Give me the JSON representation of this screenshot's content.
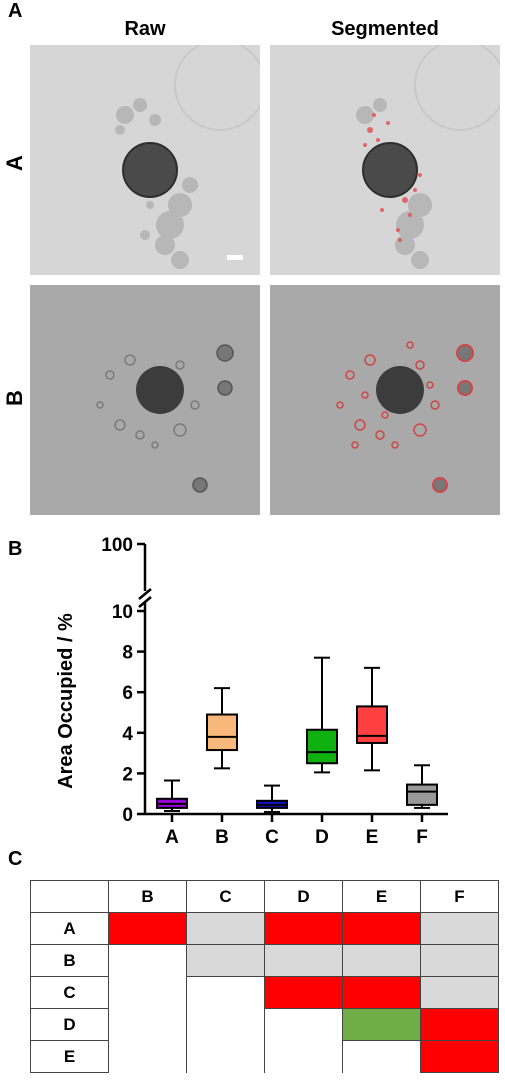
{
  "panelA": {
    "letter": "A",
    "col_headers": [
      "Raw",
      "Segmented"
    ],
    "row_labels": [
      "A",
      "B"
    ]
  },
  "panelB": {
    "letter": "B"
  },
  "panelC": {
    "letter": "C"
  },
  "chart_data": {
    "type": "box",
    "ylabel": "Area Occupied / %",
    "xlabel": "",
    "title": "",
    "categories": [
      "A",
      "B",
      "C",
      "D",
      "E",
      "F"
    ],
    "ylim_lower": [
      0,
      10
    ],
    "ylim_upper_tick": 100,
    "yticks": [
      0,
      2,
      4,
      6,
      8,
      10,
      100
    ],
    "axis_break": true,
    "boxes": [
      {
        "name": "A",
        "min": 0.15,
        "q1": 0.3,
        "median": 0.5,
        "q3": 0.75,
        "max": 1.65,
        "color": "#9a00d8"
      },
      {
        "name": "B",
        "min": 2.25,
        "q1": 3.15,
        "median": 3.8,
        "q3": 4.9,
        "max": 6.2,
        "color": "#f8b77b"
      },
      {
        "name": "C",
        "min": 0.1,
        "q1": 0.3,
        "median": 0.45,
        "q3": 0.65,
        "max": 1.4,
        "color": "#1010cc"
      },
      {
        "name": "D",
        "min": 2.05,
        "q1": 2.5,
        "median": 3.05,
        "q3": 4.15,
        "max": 7.7,
        "color": "#10b010"
      },
      {
        "name": "E",
        "min": 2.15,
        "q1": 3.5,
        "median": 3.85,
        "q3": 5.3,
        "max": 7.2,
        "color": "#ff4040"
      },
      {
        "name": "F",
        "min": 0.3,
        "q1": 0.45,
        "median": 1.1,
        "q3": 1.45,
        "max": 2.4,
        "color": "#999999"
      }
    ]
  },
  "matrix": {
    "col_headers": [
      "B",
      "C",
      "D",
      "E",
      "F"
    ],
    "row_headers": [
      "A",
      "B",
      "C",
      "D",
      "E"
    ],
    "cells": [
      [
        "red",
        "grey",
        "red",
        "red",
        "grey"
      ],
      [
        "",
        "grey",
        "grey",
        "grey",
        "grey"
      ],
      [
        "",
        "",
        "red",
        "red",
        "grey"
      ],
      [
        "",
        "",
        "",
        "green",
        "red"
      ],
      [
        "",
        "",
        "",
        "",
        "red"
      ]
    ],
    "colors": {
      "red": "#ff0000",
      "grey": "#d9d9d9",
      "green": "#70ad47"
    }
  }
}
